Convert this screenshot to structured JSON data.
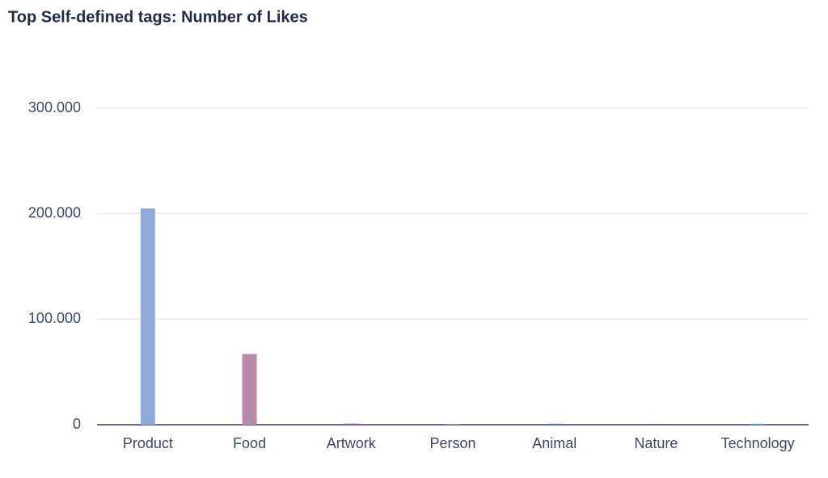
{
  "chart_data": {
    "type": "bar",
    "title": "Top Self-defined tags: Number of Likes",
    "categories": [
      "Product",
      "Food",
      "Artwork",
      "Person",
      "Animal",
      "Nature",
      "Technology"
    ],
    "values": [
      205000,
      67000,
      1000,
      300,
      900,
      800,
      900
    ],
    "colors": [
      "#8eaad8",
      "#b98aa8",
      "#a0527a",
      "#9a9aa8",
      "#4a76a8",
      "#6a6aa8",
      "#5aa0c0"
    ],
    "ylim": [
      0,
      300000
    ],
    "yticks": [
      0,
      {
        "value": 100000,
        "label": "100.000"
      },
      {
        "value": 200000,
        "label": "200.000"
      },
      {
        "value": 300000,
        "label": "300.000"
      }
    ],
    "grid": true
  }
}
